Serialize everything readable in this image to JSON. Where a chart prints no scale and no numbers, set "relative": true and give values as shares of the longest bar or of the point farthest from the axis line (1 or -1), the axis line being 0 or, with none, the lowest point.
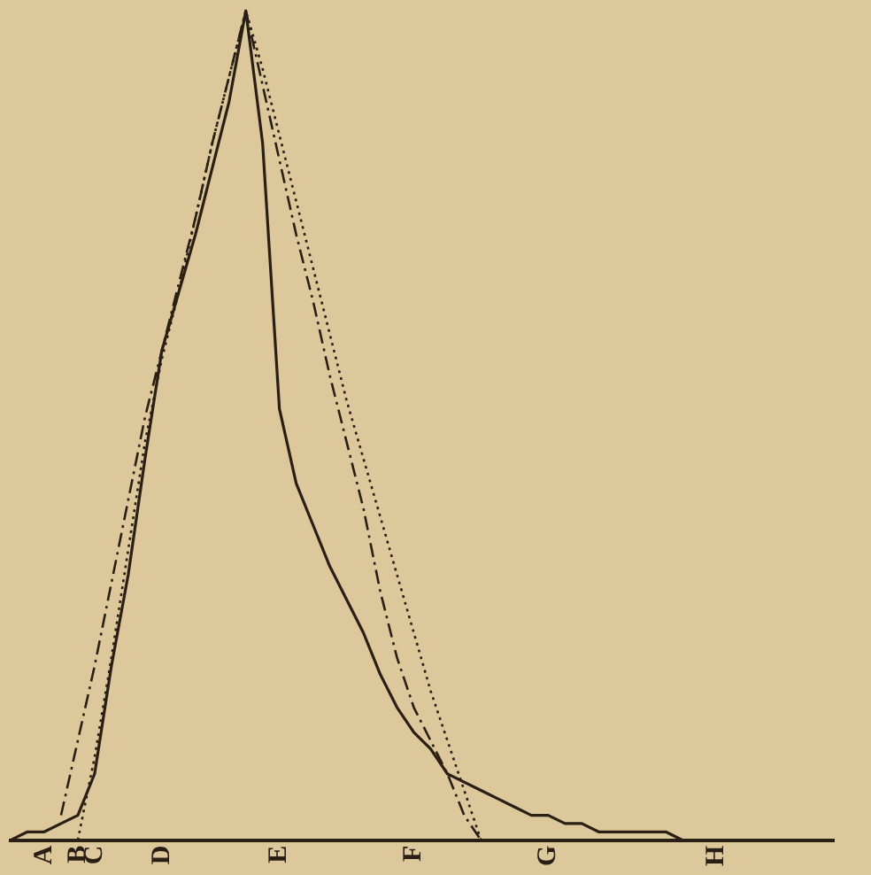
{
  "chart_data": {
    "type": "line",
    "relative": true,
    "grid": false,
    "legend": false,
    "marker": "none",
    "tick_labels": "x",
    "categories": [
      null,
      null,
      "A",
      null,
      "B",
      "C",
      null,
      null,
      null,
      "D",
      null,
      null,
      null,
      null,
      null,
      null,
      "E",
      null,
      null,
      null,
      null,
      null,
      null,
      null,
      "F",
      null,
      null,
      null,
      null,
      null,
      null,
      null,
      "G",
      null,
      null,
      null,
      null,
      null,
      null,
      null,
      null,
      null,
      "H",
      null,
      null,
      null,
      null,
      null,
      null,
      null
    ],
    "series": [
      {
        "color": "#2a1f14",
        "line_style": "solid",
        "values": [
          0,
          0.01,
          0.01,
          0.02,
          0.03,
          0.08,
          0.21,
          0.32,
          0.46,
          0.59,
          0.66,
          0.73,
          0.81,
          0.89,
          1,
          0.84,
          0.52,
          0.43,
          0.38,
          0.33,
          0.29,
          0.25,
          0.2,
          0.16,
          0.13,
          0.11,
          0.08,
          0.07,
          0.06,
          0.05,
          0.04,
          0.03,
          0.03,
          0.02,
          0.02,
          0.01,
          0.01,
          0.01,
          0.01,
          0.01,
          0,
          0,
          0,
          0,
          0,
          0,
          0,
          0,
          0,
          0
        ]
      },
      {
        "color": "#2a1f14",
        "line_style": "dashdot",
        "values": [
          null,
          null,
          null,
          0.03,
          0.12,
          0.21,
          0.31,
          0.41,
          0.51,
          0.59,
          0.67,
          0.75,
          0.84,
          0.92,
          1,
          0.91,
          0.82,
          0.73,
          0.65,
          0.56,
          0.48,
          0.4,
          0.3,
          0.22,
          0.16,
          0.12,
          0.08,
          0.03,
          0,
          null,
          null,
          null,
          null,
          null,
          null,
          null,
          null,
          null,
          null,
          null,
          null,
          null,
          null,
          null,
          null,
          null,
          null,
          null,
          null,
          null
        ]
      },
      {
        "color": "#2a1f14",
        "line_style": "dotted",
        "values": [
          null,
          null,
          null,
          null,
          0,
          0.1,
          0.22,
          0.35,
          0.48,
          0.58,
          0.66,
          0.75,
          0.84,
          0.92,
          1,
          0.93,
          0.85,
          0.77,
          0.69,
          0.61,
          0.53,
          0.46,
          0.39,
          0.32,
          0.25,
          0.18,
          0.12,
          0.06,
          0,
          null,
          null,
          null,
          null,
          null,
          null,
          null,
          null,
          null,
          null,
          null,
          null,
          null,
          null,
          null,
          null,
          null,
          null,
          null,
          null,
          null
        ]
      }
    ]
  }
}
